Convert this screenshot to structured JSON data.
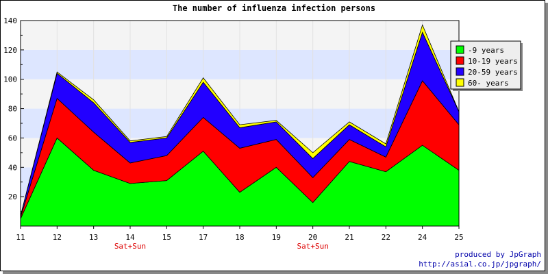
{
  "chart_data": {
    "type": "area",
    "stacked": true,
    "title": "The number of influenza infection persons",
    "categories": [
      "11",
      "12",
      "13",
      "14",
      "15",
      "17",
      "18",
      "19",
      "20",
      "21",
      "22",
      "24",
      "25"
    ],
    "category_sublabels": [
      "",
      "",
      "",
      "Sat+Sun",
      "",
      "",
      "",
      "",
      "Sat+Sun",
      "",
      "",
      "",
      ""
    ],
    "ylim": [
      0,
      140
    ],
    "yticks": [
      20,
      40,
      60,
      80,
      100,
      120,
      140
    ],
    "series": [
      {
        "name": "-9 years",
        "color": "#00ff00",
        "values": [
          5,
          60,
          38,
          29,
          31,
          51,
          23,
          40,
          16,
          44,
          37,
          55,
          38
        ]
      },
      {
        "name": "10-19 years",
        "color": "#ff0000",
        "values": [
          1,
          27,
          26,
          14,
          17,
          23,
          30,
          19,
          17,
          15,
          10,
          44,
          31
        ]
      },
      {
        "name": "20-59 years",
        "color": "#2200ff",
        "values": [
          1,
          17,
          20,
          14,
          12,
          24,
          14,
          12,
          13,
          10,
          7,
          33,
          9
        ]
      },
      {
        "name": "60- years",
        "color": "#ffff00",
        "values": [
          0,
          1,
          2,
          1,
          1,
          3,
          2,
          1,
          4,
          2,
          2,
          5,
          0
        ]
      }
    ],
    "grid": true,
    "legend_position": "right"
  },
  "credits": {
    "line1": "produced by JpGraph",
    "line2": "http://asial.co.jp/jpgraph/"
  },
  "colors": {
    "band_light": "#f4f4f4",
    "band_blue": "#dde6ff",
    "plot_border": "#000000",
    "sub_label": "#dd0000",
    "credit_text": "#0000aa"
  }
}
